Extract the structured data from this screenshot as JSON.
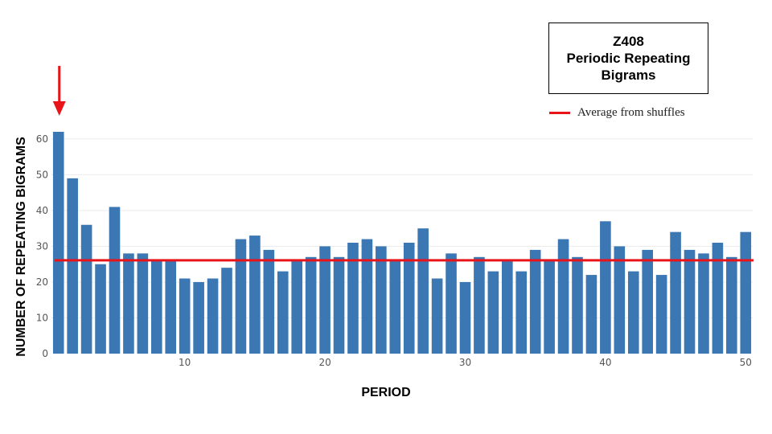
{
  "chart_data": {
    "type": "bar",
    "title_lines": [
      "Z408",
      "Periodic Repeating",
      "Bigrams"
    ],
    "xlabel": "PERIOD",
    "ylabel": "NUMBER OF REPEATING BIGRAMS",
    "x": [
      1,
      2,
      3,
      4,
      5,
      6,
      7,
      8,
      9,
      10,
      11,
      12,
      13,
      14,
      15,
      16,
      17,
      18,
      19,
      20,
      21,
      22,
      23,
      24,
      25,
      26,
      27,
      28,
      29,
      30,
      31,
      32,
      33,
      34,
      35,
      36,
      37,
      38,
      39,
      40,
      41,
      42,
      43,
      44,
      45,
      46,
      47,
      48,
      49,
      50
    ],
    "values": [
      62,
      49,
      36,
      25,
      41,
      28,
      28,
      26,
      26,
      21,
      20,
      21,
      24,
      32,
      33,
      29,
      23,
      26,
      27,
      30,
      27,
      31,
      32,
      30,
      26,
      31,
      35,
      21,
      28,
      20,
      27,
      23,
      26,
      23,
      29,
      26,
      32,
      27,
      22,
      37,
      30,
      23,
      29,
      22,
      34,
      29,
      28,
      31,
      27,
      34
    ],
    "x_ticks": [
      10,
      20,
      30,
      40,
      50
    ],
    "y_ticks": [
      0,
      10,
      20,
      30,
      40,
      50,
      60
    ],
    "ylim": [
      0,
      62
    ],
    "grid": "horizontal",
    "reference_line": {
      "label": "Average from shuffles",
      "value": 26.1,
      "color": "#e8141a"
    },
    "annotation": {
      "type": "arrow",
      "points_to_x": 1,
      "color": "#e8141a"
    },
    "bar_color": "#3b77b3",
    "legend_placement": "top-right"
  }
}
